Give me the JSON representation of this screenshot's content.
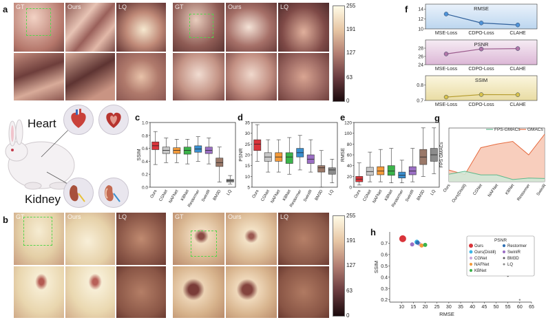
{
  "panels": {
    "a": "a",
    "b": "b",
    "c": "c",
    "d": "d",
    "e": "e",
    "f": "f",
    "g": "g",
    "h": "h"
  },
  "image_labels": {
    "gt": "GT",
    "ours": "Ours",
    "lq": "LQ"
  },
  "organs": {
    "heart": "Heart",
    "kidney": "Kidney"
  },
  "colorbar_ticks": [
    "255",
    "191",
    "127",
    "63",
    "0"
  ],
  "colors": {
    "red": "#d9343a",
    "gray": "#c8c8c8",
    "green": "#3bb34a",
    "blue": "#3a8fcf",
    "purple": "#9b6fc4",
    "brown": "#9a7868",
    "darkgray": "#8c8c8c",
    "orange": "#f39a3a",
    "cyan": "#3cb6e6"
  },
  "chart_data": [
    {
      "id": "c",
      "type": "box",
      "ylabel": "SSIM",
      "ylim": [
        0,
        1
      ],
      "yticks": [
        "0.0",
        "0.2",
        "0.4",
        "0.6",
        "0.8",
        "1.0"
      ],
      "categories": [
        "Ours",
        "CGNet",
        "NAFNet",
        "KBNet",
        "Restormer",
        "SwinIR",
        "BM3D",
        "LQ"
      ],
      "boxes": [
        [
          0.35,
          0.58,
          0.64,
          0.7,
          0.86
        ],
        [
          0.38,
          0.52,
          0.57,
          0.62,
          0.76
        ],
        [
          0.38,
          0.52,
          0.57,
          0.61,
          0.74
        ],
        [
          0.36,
          0.51,
          0.57,
          0.62,
          0.74
        ],
        [
          0.4,
          0.54,
          0.59,
          0.64,
          0.78
        ],
        [
          0.36,
          0.52,
          0.57,
          0.62,
          0.76
        ],
        [
          0.08,
          0.32,
          0.38,
          0.45,
          0.62
        ],
        [
          0.05,
          0.08,
          0.1,
          0.12,
          0.18
        ]
      ]
    },
    {
      "id": "d",
      "type": "box",
      "ylabel": "PSNR",
      "ylim": [
        5,
        35
      ],
      "yticks": [
        "5",
        "10",
        "15",
        "20",
        "25",
        "30",
        "35"
      ],
      "categories": [
        "Ours",
        "CGNet",
        "NAFNet",
        "KBNet",
        "Restormer",
        "SwinIR",
        "BM3D",
        "LQ"
      ],
      "boxes": [
        [
          17,
          22,
          25,
          27,
          34
        ],
        [
          12,
          17,
          19,
          21,
          27
        ],
        [
          12,
          17,
          19,
          21,
          27
        ],
        [
          11,
          16,
          19,
          21,
          28
        ],
        [
          13,
          19,
          21,
          23,
          29
        ],
        [
          12,
          16,
          18,
          20,
          27
        ],
        [
          5,
          12,
          14,
          15,
          22
        ],
        [
          7,
          11,
          13,
          14,
          18
        ]
      ]
    },
    {
      "id": "e",
      "type": "box",
      "ylabel": "RMSE",
      "ylim": [
        0,
        120
      ],
      "yticks": [
        "0",
        "20",
        "40",
        "60",
        "80",
        "100",
        "120"
      ],
      "categories": [
        "Ours",
        "CGNet",
        "NAFNet",
        "KBNet",
        "Restormer",
        "SwinIR",
        "BM3D",
        "LQ"
      ],
      "boxes": [
        [
          4,
          10,
          15,
          20,
          45
        ],
        [
          10,
          22,
          29,
          37,
          65
        ],
        [
          10,
          23,
          30,
          38,
          70
        ],
        [
          8,
          22,
          30,
          40,
          72
        ],
        [
          8,
          17,
          22,
          28,
          50
        ],
        [
          10,
          23,
          30,
          38,
          72
        ],
        [
          20,
          42,
          56,
          70,
          110
        ],
        [
          25,
          48,
          60,
          72,
          110
        ]
      ]
    },
    {
      "id": "f1",
      "type": "line",
      "title": "RMSE",
      "ylim": [
        10,
        15
      ],
      "yticks": [
        "10",
        "12",
        "14"
      ],
      "categories": [
        "MSE-Loss",
        "CDPO-Loss",
        "CLAHE"
      ],
      "values": [
        13,
        11.2,
        10.8
      ]
    },
    {
      "id": "f2",
      "type": "line",
      "title": "PSNR",
      "ylim": [
        24,
        30
      ],
      "yticks": [
        "24",
        "26",
        "28"
      ],
      "categories": [
        "MSE-Loss",
        "CDPO-Loss",
        "CLAHE"
      ],
      "values": [
        26.6,
        27.8,
        27.9
      ]
    },
    {
      "id": "f3",
      "type": "line",
      "title": "SSIM",
      "ylim": [
        0.7,
        0.86
      ],
      "yticks": [
        "0.7",
        "0.8"
      ],
      "categories": [
        "MSE-Loss",
        "CDPO-Loss",
        "CLAHE"
      ],
      "values": [
        0.722,
        0.738,
        0.737
      ]
    },
    {
      "id": "g",
      "type": "area",
      "ylabel": "FPS GMACs",
      "ylim": [
        0,
        300
      ],
      "categories": [
        "Ours",
        "Ours(Distill)",
        "CGNet",
        "NAFNet",
        "KBNet",
        "Restormer",
        "SwinIR"
      ],
      "series": [
        {
          "name": "FPS-GMACs",
          "values": [
            42,
            58,
            38,
            38,
            12,
            20,
            18
          ]
        },
        {
          "name": "GMACs",
          "values": [
            65,
            40,
            190,
            210,
            225,
            150,
            265
          ]
        }
      ]
    },
    {
      "id": "h",
      "type": "scatter",
      "title": "PSNR",
      "xlabel": "RMSE",
      "ylabel": "SSIM",
      "xlim": [
        5,
        65
      ],
      "ylim": [
        0.18,
        0.8
      ],
      "xticks": [
        "10",
        "15",
        "20",
        "25",
        "30",
        "35",
        "40",
        "45",
        "50",
        "55",
        "60",
        "65"
      ],
      "yticks": [
        "0.2",
        "0.3",
        "0.4",
        "0.5",
        "0.6",
        "0.7"
      ],
      "points": [
        {
          "name": "Ours",
          "x": 10.5,
          "y": 0.74,
          "color": "#d9343a",
          "r": 5
        },
        {
          "name": "Ours(Distill)",
          "x": 16.5,
          "y": 0.71,
          "color": "#3cb6e6",
          "r": 3.5
        },
        {
          "name": "CGNet",
          "x": 17.5,
          "y": 0.695,
          "color": "#c9a6dc",
          "r": 3
        },
        {
          "name": "NAFNet",
          "x": 18.5,
          "y": 0.68,
          "color": "#f39a3a",
          "r": 3
        },
        {
          "name": "KBNet",
          "x": 20,
          "y": 0.685,
          "color": "#3bb34a",
          "r": 3
        },
        {
          "name": "Restormer",
          "x": 16.8,
          "y": 0.705,
          "color": "#2f6fb3",
          "r": 3
        },
        {
          "name": "SwinIR",
          "x": 14.5,
          "y": 0.69,
          "color": "#9b6fc4",
          "r": 3
        },
        {
          "name": "BM3D",
          "x": 55,
          "y": 0.41,
          "color": "#555555",
          "r": 1.2
        },
        {
          "name": "LQ",
          "x": 60,
          "y": 0.2,
          "color": "#888888",
          "r": 1.2
        }
      ]
    }
  ]
}
